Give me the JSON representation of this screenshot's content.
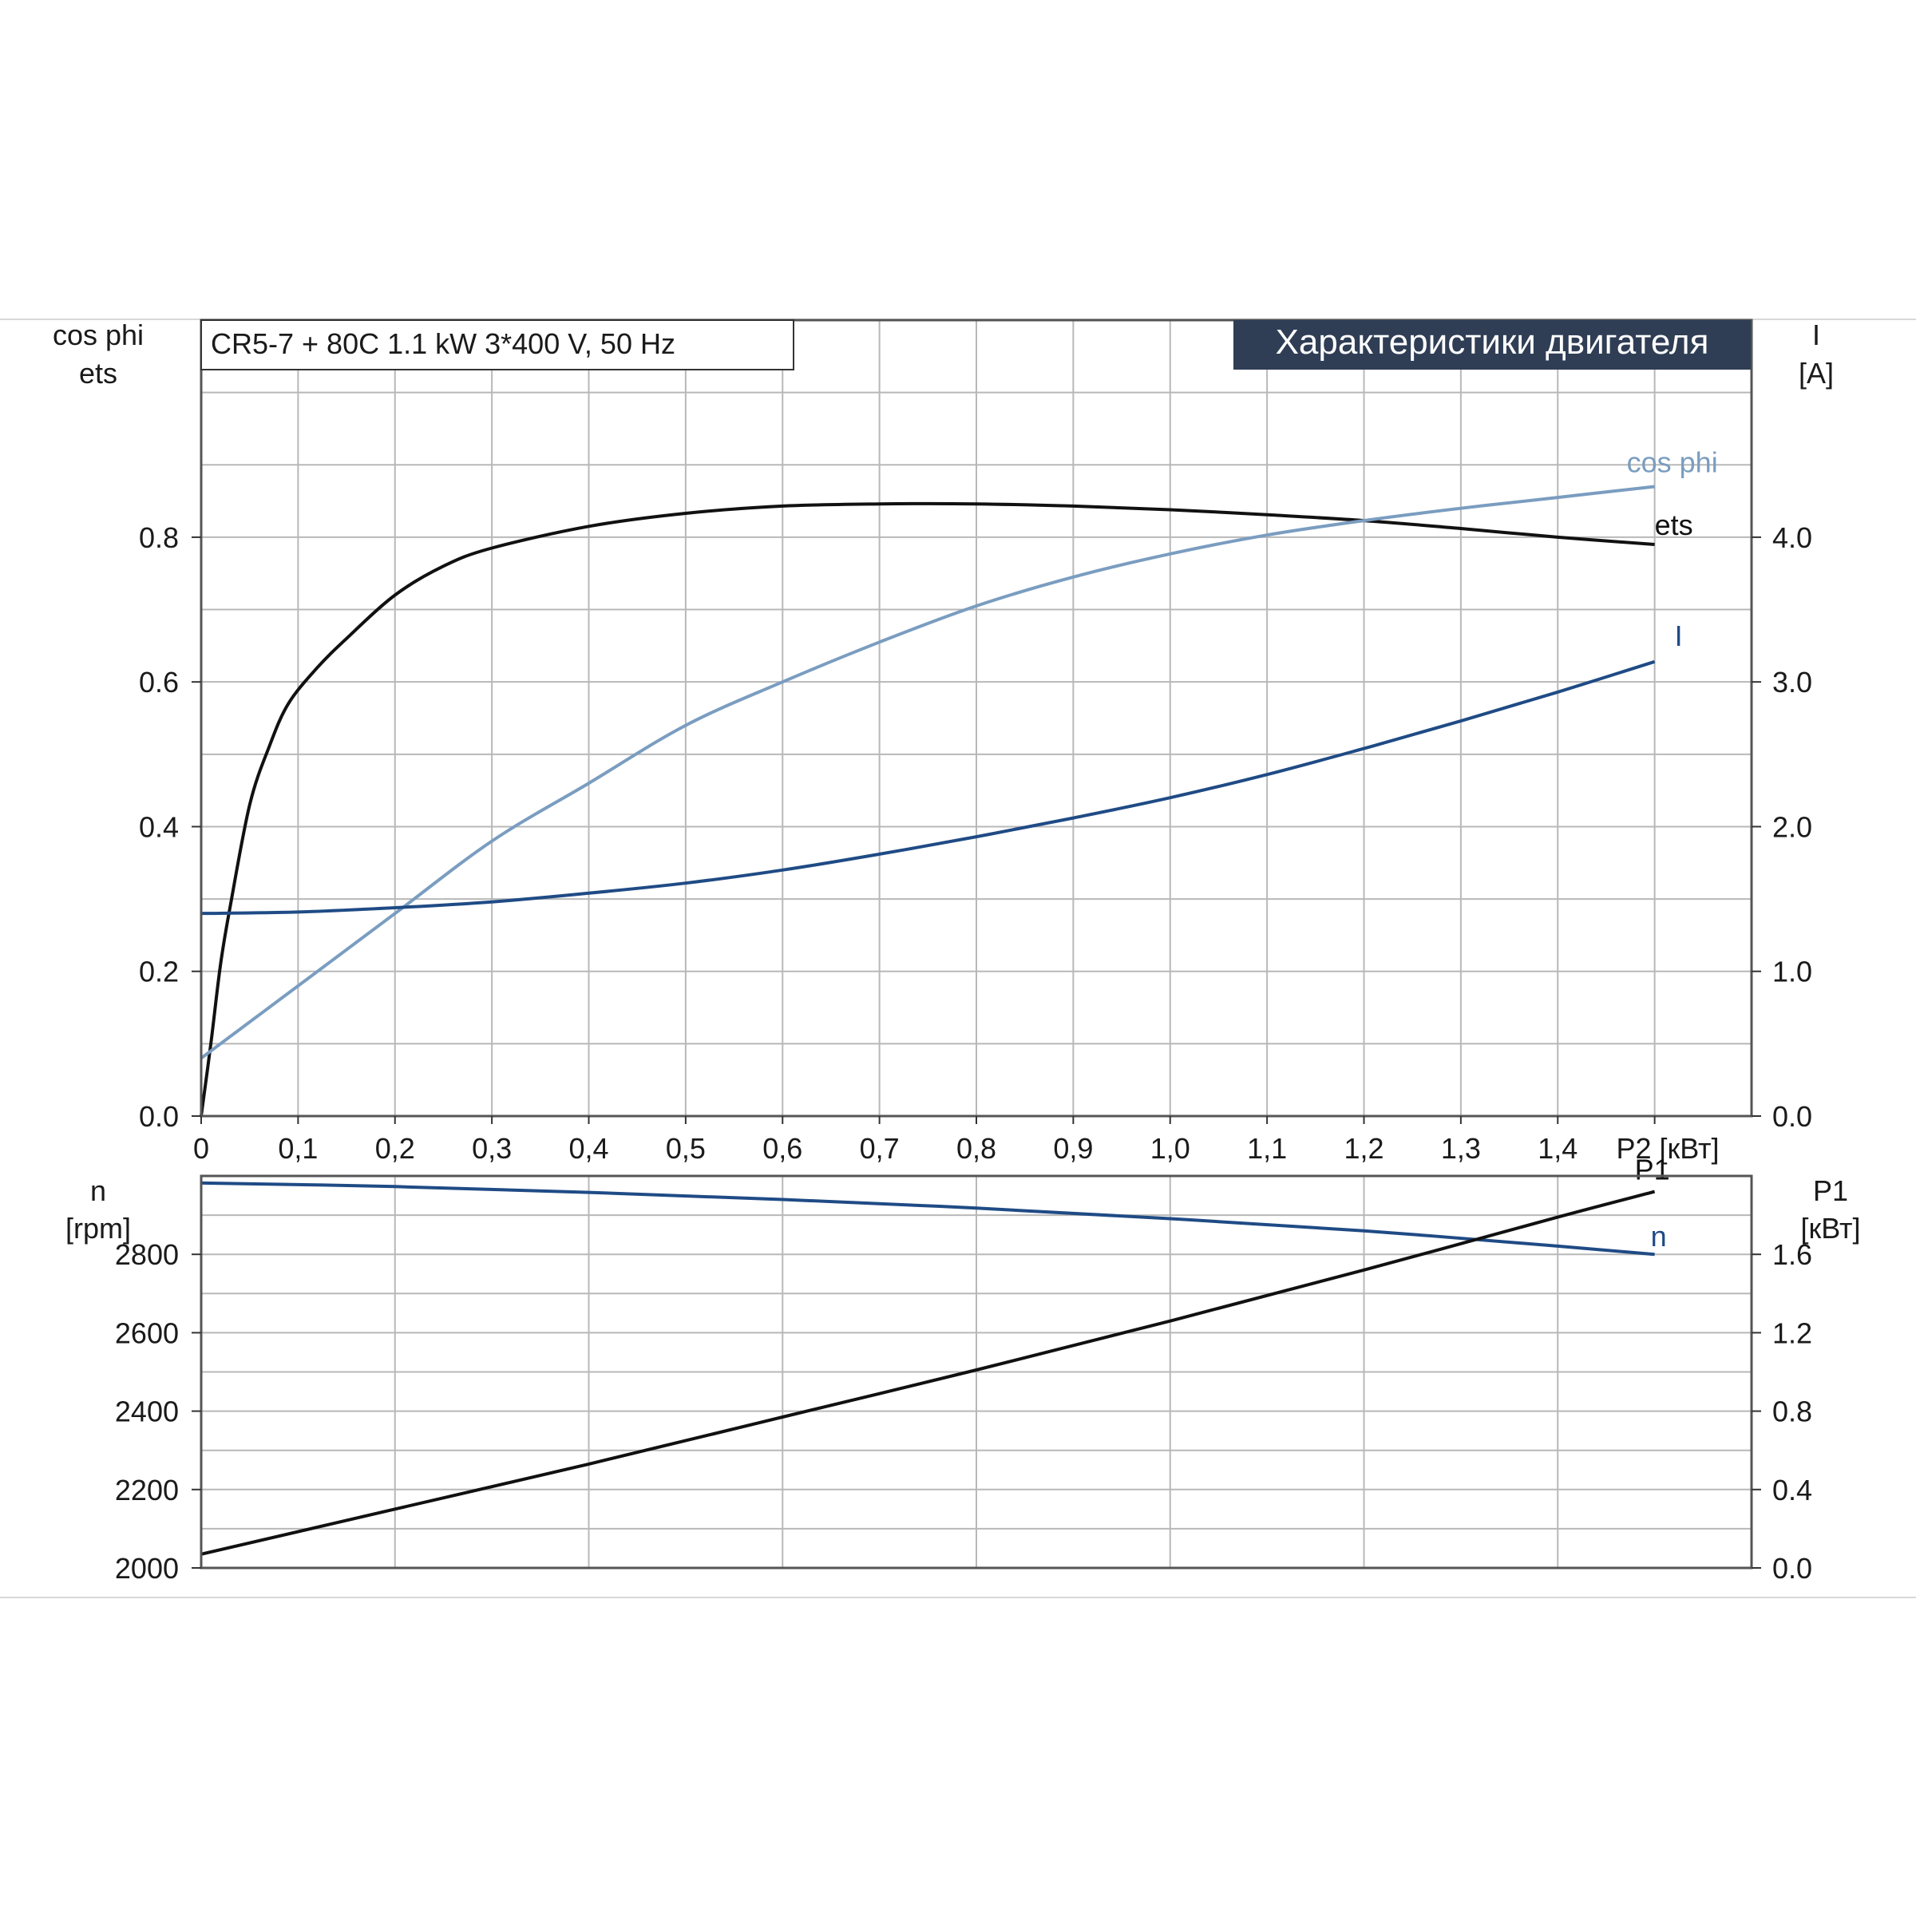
{
  "header": {
    "info_box": "CR5-7 + 80C   1.1 kW   3*400 V, 50 Hz",
    "title": "Характеристики двигателя"
  },
  "colors": {
    "ets": "#111111",
    "cos_phi": "#7a9dc0",
    "I": "#1f4b85",
    "n": "#1f4b85",
    "P1": "#111111",
    "title_bg": "#2f3e55",
    "title_fg": "#ffffff"
  },
  "chart_data": [
    {
      "type": "line",
      "name": "upper",
      "left_axis_label_line1": "cos phi",
      "left_axis_label_line2": "ets",
      "right_axis_label_line1": "I",
      "right_axis_label_line2": "[A]",
      "xlabel": "P2 [кВт]",
      "x_ticks": [
        "0",
        "0,1",
        "0,2",
        "0,3",
        "0,4",
        "0,5",
        "0,6",
        "0,7",
        "0,8",
        "0,9",
        "1,0",
        "1,1",
        "1,2",
        "1,3",
        "1,4"
      ],
      "xlim": [
        0,
        1.6
      ],
      "ylim_left": [
        0,
        1.1
      ],
      "ylim_right": [
        0,
        5.5
      ],
      "y_ticks_left": [
        "0.0",
        "0.2",
        "0.4",
        "0.6",
        "0.8"
      ],
      "y_ticks_right": [
        "0.0",
        "1.0",
        "2.0",
        "3.0",
        "4.0"
      ],
      "grid": true,
      "series": [
        {
          "name": "ets",
          "axis": "left",
          "x": [
            0,
            0.01,
            0.02,
            0.03,
            0.05,
            0.07,
            0.09,
            0.12,
            0.15,
            0.2,
            0.25,
            0.3,
            0.4,
            0.5,
            0.6,
            0.7,
            0.8,
            0.9,
            1.0,
            1.1,
            1.2,
            1.3,
            1.4,
            1.5
          ],
          "y": [
            0.0,
            0.1,
            0.21,
            0.29,
            0.43,
            0.51,
            0.57,
            0.62,
            0.66,
            0.72,
            0.76,
            0.785,
            0.815,
            0.833,
            0.843,
            0.846,
            0.846,
            0.843,
            0.838,
            0.831,
            0.823,
            0.812,
            0.8,
            0.79
          ]
        },
        {
          "name": "cos phi",
          "axis": "left",
          "x": [
            0,
            0.1,
            0.2,
            0.3,
            0.4,
            0.5,
            0.6,
            0.7,
            0.8,
            0.9,
            1.0,
            1.1,
            1.2,
            1.3,
            1.4,
            1.5
          ],
          "y": [
            0.08,
            0.18,
            0.28,
            0.38,
            0.46,
            0.54,
            0.6,
            0.655,
            0.705,
            0.745,
            0.777,
            0.803,
            0.823,
            0.84,
            0.855,
            0.87
          ]
        },
        {
          "name": "I",
          "axis": "right",
          "x": [
            0,
            0.1,
            0.2,
            0.3,
            0.4,
            0.5,
            0.6,
            0.7,
            0.8,
            0.9,
            1.0,
            1.1,
            1.2,
            1.3,
            1.4,
            1.5
          ],
          "y": [
            1.4,
            1.41,
            1.44,
            1.48,
            1.54,
            1.61,
            1.7,
            1.81,
            1.93,
            2.06,
            2.2,
            2.36,
            2.54,
            2.73,
            2.93,
            3.14
          ]
        }
      ]
    },
    {
      "type": "line",
      "name": "lower",
      "left_axis_label_line1": "n",
      "left_axis_label_line2": "[rpm]",
      "right_axis_label_line1": "P1",
      "right_axis_label_line2": "[кВт]",
      "xlim": [
        0,
        1.6
      ],
      "ylim_left": [
        2000,
        3000
      ],
      "ylim_right": [
        0,
        2.0
      ],
      "y_ticks_left": [
        "2000",
        "2200",
        "2400",
        "2600",
        "2800"
      ],
      "y_ticks_right": [
        "0.0",
        "0.4",
        "0.8",
        "1.2",
        "1.6"
      ],
      "grid": true,
      "series": [
        {
          "name": "n",
          "axis": "left",
          "x": [
            0,
            0.2,
            0.4,
            0.6,
            0.8,
            1.0,
            1.2,
            1.4,
            1.5
          ],
          "y": [
            2982,
            2973,
            2958,
            2940,
            2918,
            2891,
            2860,
            2821,
            2800
          ]
        },
        {
          "name": "P1",
          "axis": "right",
          "x": [
            0,
            0.2,
            0.4,
            0.6,
            0.8,
            1.0,
            1.2,
            1.4,
            1.5
          ],
          "y": [
            0.07,
            0.3,
            0.53,
            0.77,
            1.01,
            1.26,
            1.52,
            1.79,
            1.92
          ]
        }
      ]
    }
  ]
}
